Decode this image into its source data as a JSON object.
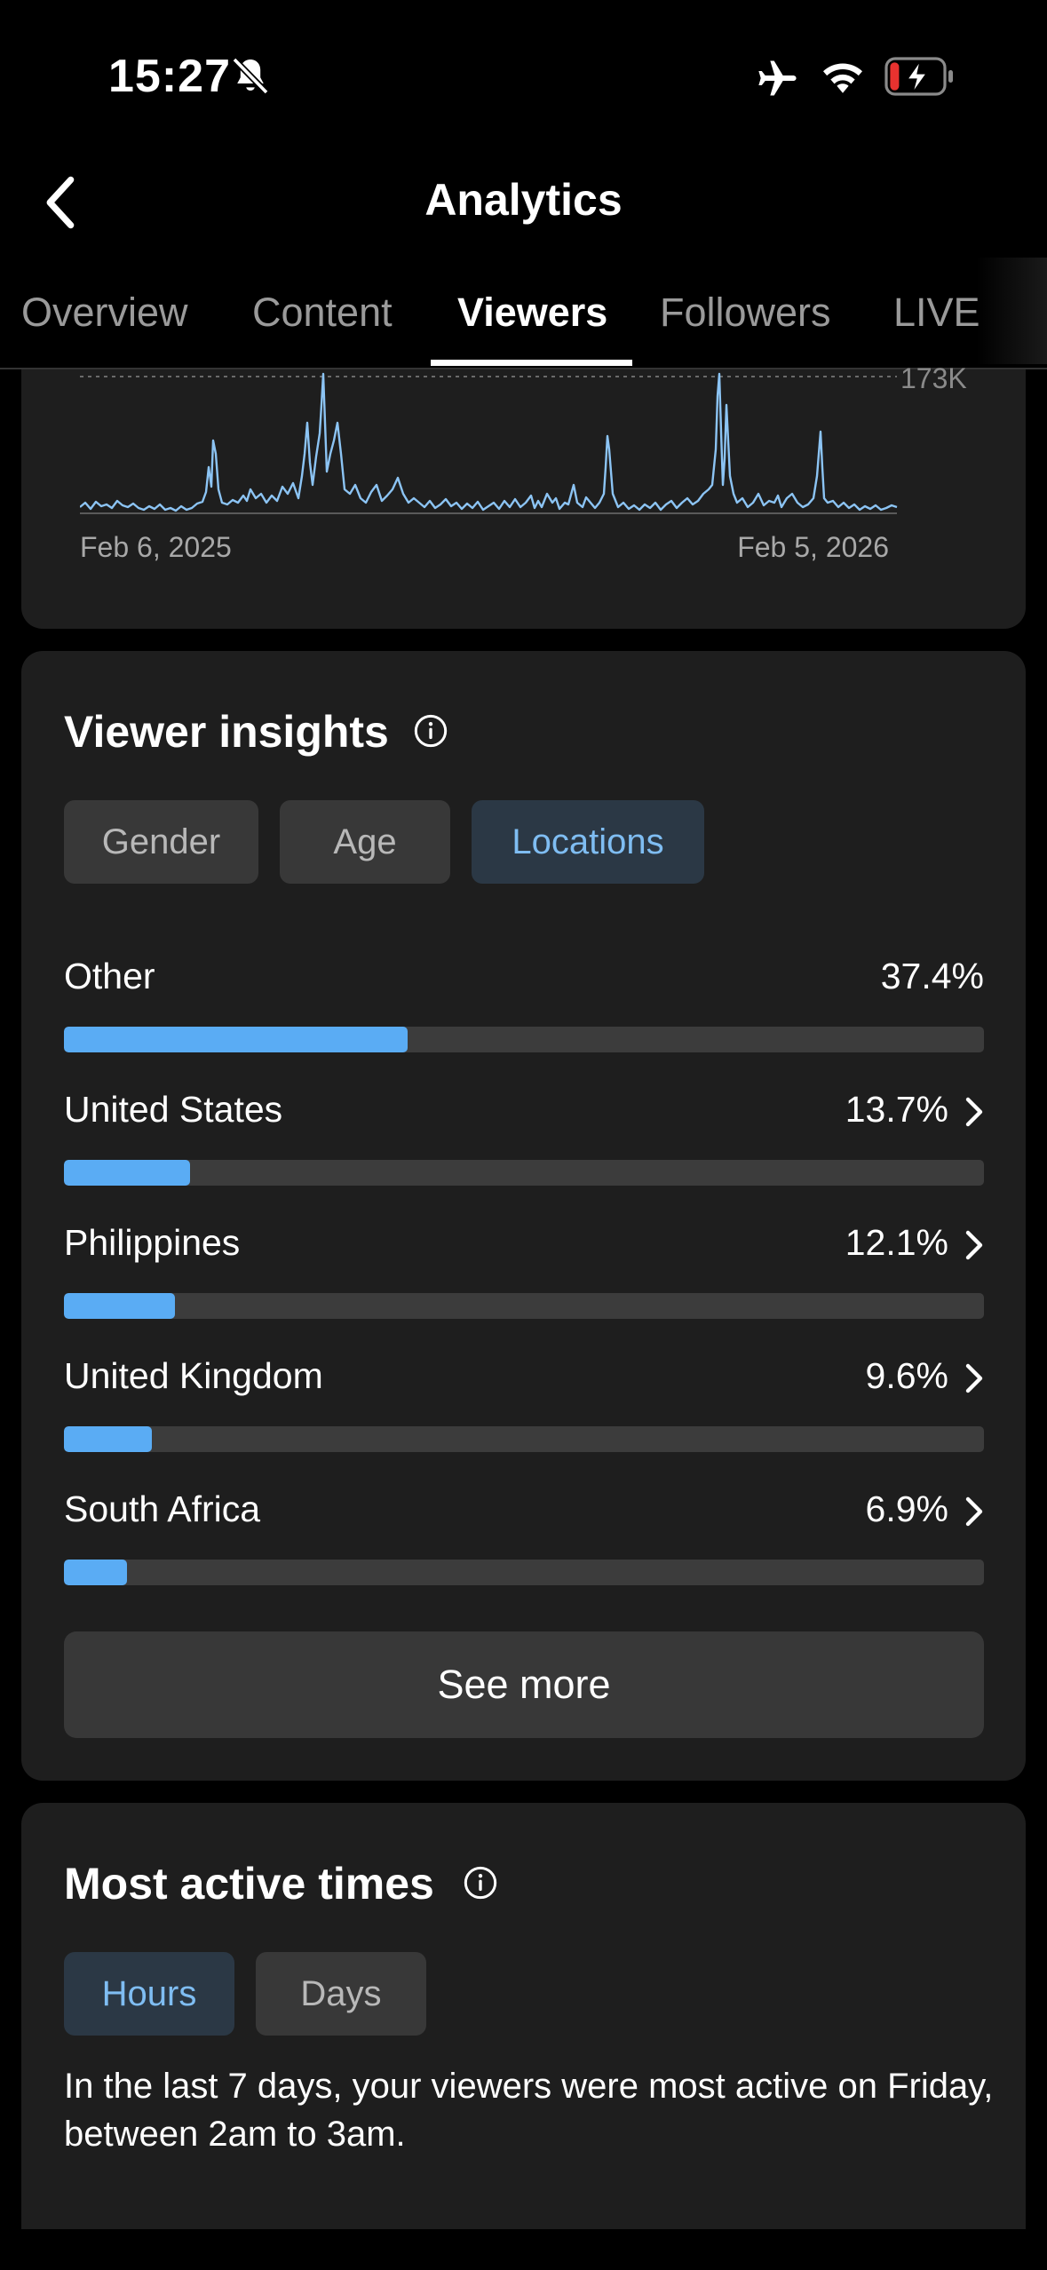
{
  "status_bar": {
    "time": "15:27",
    "icons": [
      "bell-off-icon",
      "airplane-icon",
      "wifi-icon",
      "battery-charging-icon"
    ],
    "battery_color": "#e8322f"
  },
  "header": {
    "title": "Analytics",
    "back_icon": "chevron-left-icon"
  },
  "tabs": [
    {
      "label": "Overview",
      "active": false
    },
    {
      "label": "Content",
      "active": false
    },
    {
      "label": "Viewers",
      "active": true
    },
    {
      "label": "Followers",
      "active": false
    },
    {
      "label": "LIVE",
      "active": false
    }
  ],
  "viewers_chart": {
    "max_label": "173K",
    "x_start": "Feb 6, 2025",
    "x_end": "Feb 5, 2026",
    "line_color": "#8cc4f4"
  },
  "viewer_insights": {
    "title": "Viewer insights",
    "filters": [
      {
        "label": "Gender",
        "active": false
      },
      {
        "label": "Age",
        "active": false
      },
      {
        "label": "Locations",
        "active": true
      }
    ],
    "locations": [
      {
        "name": "Other",
        "percent_label": "37.4%",
        "share": 0.374,
        "has_chevron": false
      },
      {
        "name": "United States",
        "percent_label": "13.7%",
        "share": 0.137,
        "has_chevron": true
      },
      {
        "name": "Philippines",
        "percent_label": "12.1%",
        "share": 0.121,
        "has_chevron": true
      },
      {
        "name": "United Kingdom",
        "percent_label": "9.6%",
        "share": 0.096,
        "has_chevron": true
      },
      {
        "name": "South Africa",
        "percent_label": "6.9%",
        "share": 0.069,
        "has_chevron": true
      }
    ],
    "see_more_label": "See more",
    "bar_color": "#5aacf4"
  },
  "most_active_times": {
    "title": "Most active times",
    "filters": [
      {
        "label": "Hours",
        "active": true
      },
      {
        "label": "Days",
        "active": false
      }
    ],
    "summary": "In the last 7 days, your viewers were most active on Friday, between 2am to 3am."
  }
}
